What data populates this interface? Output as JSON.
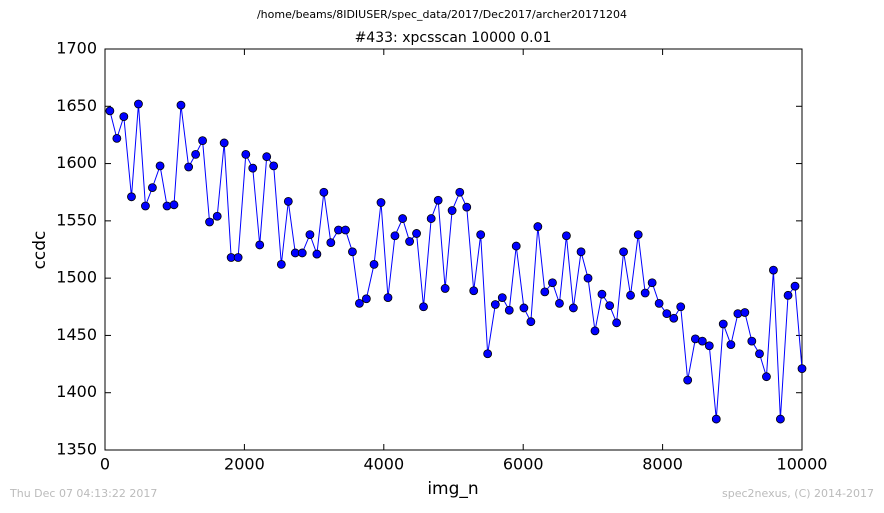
{
  "chart_data": {
    "type": "line",
    "suptitle": "/home/beams/8IDIUSER/spec_data/2017/Dec2017/archer20171204",
    "title": "#433: xpcsscan 10000 0.01",
    "x_label": "img_n",
    "y_label": "ccdc",
    "footer_left": "Thu Dec 07 04:13:22 2017",
    "footer_right": "spec2nexus, (C) 2014-2017",
    "grid": false,
    "xlim": [
      0,
      10000
    ],
    "xticks": [
      0,
      2000,
      4000,
      6000,
      8000,
      10000
    ],
    "ylim": [
      1350,
      1700
    ],
    "yticks": [
      1350,
      1400,
      1450,
      1500,
      1550,
      1600,
      1650,
      1700
    ],
    "x": [
      70,
      170,
      270,
      380,
      480,
      580,
      680,
      790,
      890,
      990,
      1090,
      1200,
      1300,
      1400,
      1500,
      1610,
      1710,
      1810,
      1910,
      2020,
      2120,
      2220,
      2320,
      2420,
      2530,
      2630,
      2730,
      2830,
      2940,
      3040,
      3140,
      3240,
      3350,
      3450,
      3550,
      3650,
      3750,
      3860,
      3960,
      4060,
      4160,
      4270,
      4370,
      4470,
      4570,
      4680,
      4780,
      4880,
      4980,
      5090,
      5190,
      5290,
      5390,
      5490,
      5600,
      5700,
      5800,
      5900,
      6010,
      6110,
      6210,
      6310,
      6420,
      6520,
      6620,
      6720,
      6830,
      6930,
      7030,
      7130,
      7240,
      7340,
      7440,
      7540,
      7650,
      7750,
      7850,
      7950,
      8060,
      8160,
      8260,
      8360,
      8470,
      8570,
      8670,
      8770,
      8870,
      8980,
      9080,
      9180,
      9280,
      9390,
      9490,
      9590,
      9690,
      9800,
      9900,
      10000
    ],
    "series": [
      {
        "color": "#0000ff",
        "values": [
          1646,
          1622,
          1641,
          1571,
          1652,
          1563,
          1579,
          1598,
          1563,
          1564,
          1651,
          1597,
          1608,
          1620,
          1549,
          1554,
          1618,
          1518,
          1518,
          1608,
          1596,
          1529,
          1606,
          1598,
          1512,
          1567,
          1522,
          1522,
          1538,
          1521,
          1575,
          1531,
          1542,
          1542,
          1523,
          1478,
          1482,
          1512,
          1566,
          1483,
          1537,
          1552,
          1532,
          1539,
          1475,
          1552,
          1568,
          1491,
          1559,
          1575,
          1562,
          1489,
          1538,
          1434,
          1477,
          1483,
          1472,
          1528,
          1474,
          1462,
          1545,
          1488,
          1496,
          1478,
          1537,
          1474,
          1523,
          1500,
          1454,
          1486,
          1476,
          1461,
          1523,
          1485,
          1538,
          1487,
          1496,
          1478,
          1469,
          1465,
          1475,
          1411,
          1447,
          1445,
          1441,
          1377,
          1460,
          1442,
          1469,
          1470,
          1445,
          1434,
          1414,
          1507,
          1377,
          1485,
          1493,
          1421
        ]
      }
    ]
  }
}
